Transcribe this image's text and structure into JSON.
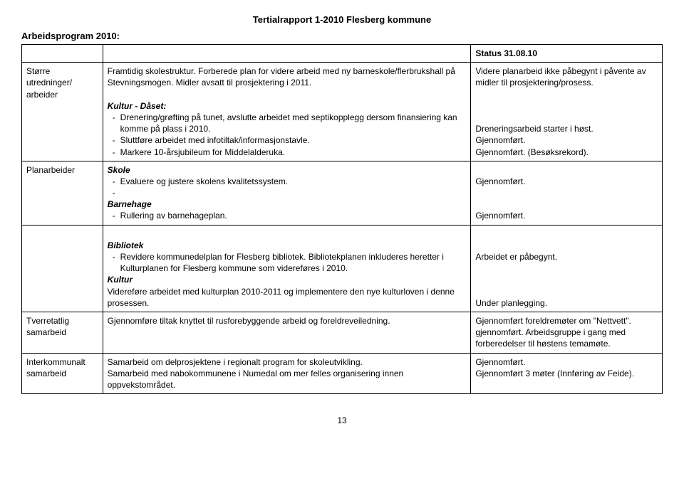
{
  "header": "Tertialrapport 1-2010 Flesberg kommune",
  "section_title": "Arbeidsprogram 2010:",
  "status_header": "Status 31.08.10",
  "rows": {
    "r1": {
      "label": "Større utredninger/ arbeider",
      "para": "Framtidig skolestruktur. Forberede plan for videre arbeid med ny barneskole/flerbrukshall på Stevningsmogen. Midler avsatt til prosjektering i 2011.",
      "sub_title": "Kultur - Dåset:",
      "b1": "Drenering/grøfting på tunet, avslutte arbeidet med septikopplegg dersom finansiering kan komme på plass i 2010.",
      "b2": "Sluttføre arbeidet med infotiltak/informasjonstavle.",
      "b3": "Markere 10-årsjubileum for Middelalderuka.",
      "status1": "Videre planarbeid ikke påbegynt i påvente av midler til prosjektering/prosess.",
      "status2": "Dreneringsarbeid starter i høst.",
      "status3": "Gjennomført.",
      "status4": "Gjennomført. (Besøksrekord)."
    },
    "r2": {
      "label": "Planarbeider",
      "t1": "Skole",
      "b1": "Evaluere og justere skolens kvalitetssystem.",
      "t2": "Barnehage",
      "b2": "Rullering av barnehageplan.",
      "s1": "Gjennomført.",
      "s2": "Gjennomført."
    },
    "r3": {
      "t1": "Bibliotek",
      "b1": "Revidere kommunedelplan for Flesberg bibliotek. Bibliotekplanen inkluderes heretter i Kulturplanen for Flesberg kommune som videreføres i 2010.",
      "t2": "Kultur",
      "p2": "Videreføre arbeidet med kulturplan 2010-2011 og implementere den nye kulturloven i denne prosessen.",
      "s1": "Arbeidet er påbegynt.",
      "s2": "Under planlegging."
    },
    "r4": {
      "label": "Tverretatlig samarbeid",
      "p": "Gjennomføre tiltak knyttet til rusforebyggende arbeid og foreldreveiledning.",
      "s": "Gjennomført foreldremøter om \"Nettvett\". gjennomført. Arbeidsgruppe i gang med forberedelser til høstens temamøte."
    },
    "r5": {
      "label": "Interkommunalt samarbeid",
      "p1": "Samarbeid om delprosjektene i regionalt program for skoleutvikling.",
      "p2": "Samarbeid med nabokommunene i Numedal om mer felles organisering innen oppvekstområdet.",
      "s1": "Gjennomført.",
      "s2": "Gjennomført 3 møter (Innføring av Feide)."
    }
  },
  "page_num": "13"
}
